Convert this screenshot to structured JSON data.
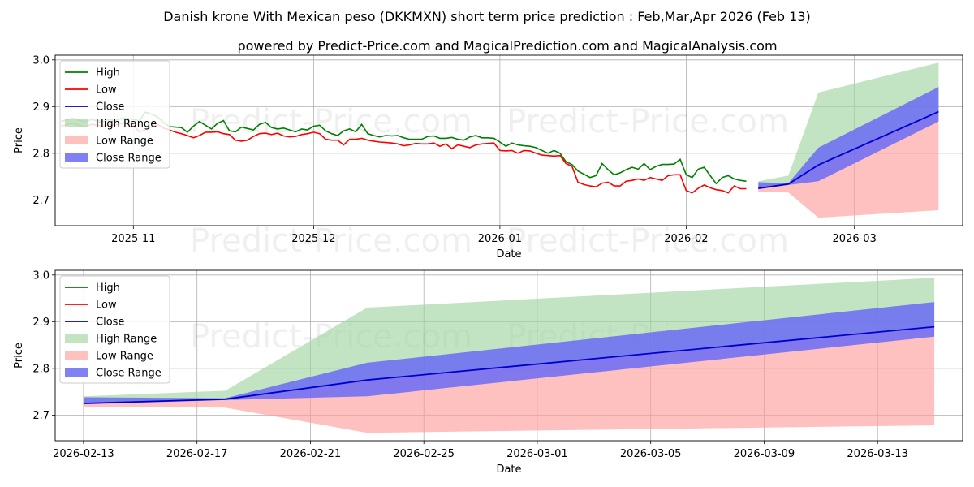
{
  "title": "Danish krone With Mexican peso (DKKMXN) short term price prediction : Feb,Mar,Apr 2026 (Feb 13)",
  "subtitle": "powered by Predict-Price.com and MagicalPrediction.com and MagicalAnalysis.com",
  "watermark": "Predict-Price.com",
  "colors": {
    "high": "#008000",
    "low": "#ff0000",
    "close": "#0000cc",
    "high_range": "#9dd49d",
    "low_range": "#ff9a9a",
    "close_range": "#6b6bf5"
  },
  "chart_data": [
    {
      "id": "top",
      "type": "line",
      "xlabel": "Date",
      "ylabel": "Price",
      "x_range": [
        "2025-10-19",
        "2026-03-19"
      ],
      "ylim": [
        2.645,
        3.01
      ],
      "yticks": [
        "2.7",
        "2.8",
        "2.9",
        "3.0"
      ],
      "ytick_values": [
        2.7,
        2.8,
        2.9,
        3.0
      ],
      "xticks": [
        "2025-11",
        "2025-12",
        "2026-01",
        "2026-02",
        "2026-03"
      ],
      "xtick_dates": [
        "2025-11-01",
        "2025-12-01",
        "2026-01-01",
        "2026-02-01",
        "2026-03-01"
      ],
      "legend": [
        "High",
        "Low",
        "Close",
        "High Range",
        "Low Range",
        "Close Range"
      ],
      "history_start": "2025-10-20",
      "history_high": [
        2.868,
        2.872,
        2.875,
        2.87,
        2.868,
        2.872,
        2.87,
        2.868,
        2.872,
        2.87,
        2.874,
        2.875,
        2.872,
        2.87,
        2.888,
        2.884,
        2.878,
        2.866,
        2.857,
        2.856,
        2.855,
        2.845,
        2.858,
        2.868,
        2.86,
        2.852,
        2.864,
        2.87,
        2.848,
        2.846,
        2.856,
        2.853,
        2.85,
        2.862,
        2.866,
        2.855,
        2.852,
        2.854,
        2.85,
        2.846,
        2.852,
        2.85,
        2.858,
        2.86,
        2.848,
        2.842,
        2.838,
        2.848,
        2.852,
        2.846,
        2.862,
        2.842,
        2.838,
        2.835,
        2.838,
        2.837,
        2.838,
        2.833,
        2.83,
        2.83,
        2.83,
        2.836,
        2.837,
        2.832,
        2.832,
        2.834,
        2.83,
        2.828,
        2.835,
        2.838,
        2.833,
        2.833,
        2.832,
        2.824,
        2.815,
        2.822,
        2.818,
        2.816,
        2.815,
        2.812,
        2.806,
        2.8,
        2.806,
        2.8,
        2.782,
        2.776,
        2.762,
        2.755,
        2.748,
        2.752,
        2.778,
        2.765,
        2.754,
        2.758,
        2.765,
        2.77,
        2.766,
        2.778,
        2.765,
        2.772,
        2.776,
        2.776,
        2.777,
        2.787,
        2.754,
        2.748,
        2.766,
        2.77,
        2.752,
        2.735,
        2.748,
        2.752,
        2.745,
        2.742,
        2.74
      ],
      "history_low": [
        2.858,
        2.862,
        2.864,
        2.86,
        2.856,
        2.862,
        2.86,
        2.858,
        2.862,
        2.86,
        2.864,
        2.865,
        2.86,
        2.846,
        2.85,
        2.856,
        2.862,
        2.854,
        2.85,
        2.845,
        2.842,
        2.838,
        2.833,
        2.838,
        2.845,
        2.845,
        2.846,
        2.842,
        2.84,
        2.828,
        2.826,
        2.828,
        2.836,
        2.842,
        2.843,
        2.84,
        2.843,
        2.837,
        2.835,
        2.836,
        2.84,
        2.842,
        2.845,
        2.842,
        2.83,
        2.828,
        2.828,
        2.818,
        2.83,
        2.83,
        2.832,
        2.828,
        2.826,
        2.824,
        2.823,
        2.822,
        2.82,
        2.816,
        2.818,
        2.821,
        2.82,
        2.82,
        2.822,
        2.815,
        2.82,
        2.81,
        2.818,
        2.815,
        2.812,
        2.818,
        2.82,
        2.821,
        2.822,
        2.806,
        2.805,
        2.806,
        2.8,
        2.806,
        2.805,
        2.8,
        2.796,
        2.795,
        2.794,
        2.795,
        2.778,
        2.772,
        2.738,
        2.733,
        2.73,
        2.728,
        2.736,
        2.738,
        2.73,
        2.73,
        2.74,
        2.742,
        2.745,
        2.742,
        2.748,
        2.745,
        2.742,
        2.752,
        2.754,
        2.754,
        2.72,
        2.715,
        2.725,
        2.732,
        2.726,
        2.722,
        2.72,
        2.715,
        2.73,
        2.724,
        2.724
      ],
      "forecast_dates": [
        "2026-02-13",
        "2026-02-18",
        "2026-02-23",
        "2026-03-15"
      ],
      "forecast_close": [
        2.725,
        2.734,
        2.775,
        2.889
      ],
      "high_range": {
        "upper": [
          2.74,
          2.752,
          2.93,
          2.994
        ],
        "lower": [
          2.725,
          2.734,
          2.775,
          2.889
        ]
      },
      "low_range": {
        "upper": [
          2.725,
          2.734,
          2.775,
          2.889
        ],
        "lower": [
          2.718,
          2.716,
          2.662,
          2.678
        ]
      },
      "close_range": {
        "upper": [
          2.738,
          2.736,
          2.812,
          2.942
        ],
        "lower": [
          2.723,
          2.732,
          2.74,
          2.868
        ]
      }
    },
    {
      "id": "bottom",
      "type": "area",
      "xlabel": "Date",
      "ylabel": "Price",
      "x_range": [
        "2026-02-12",
        "2026-03-16"
      ],
      "ylim": [
        2.645,
        3.01
      ],
      "yticks": [
        "2.7",
        "2.8",
        "2.9",
        "3.0"
      ],
      "ytick_values": [
        2.7,
        2.8,
        2.9,
        3.0
      ],
      "xticks": [
        "2026-02-13",
        "2026-02-17",
        "2026-02-21",
        "2026-02-25",
        "2026-03-01",
        "2026-03-05",
        "2026-03-09",
        "2026-03-13"
      ],
      "xtick_dates": [
        "2026-02-13",
        "2026-02-17",
        "2026-02-21",
        "2026-02-25",
        "2026-03-01",
        "2026-03-05",
        "2026-03-09",
        "2026-03-13"
      ],
      "legend": [
        "High",
        "Low",
        "Close",
        "High Range",
        "Low Range",
        "Close Range"
      ],
      "forecast_dates": [
        "2026-02-13",
        "2026-02-18",
        "2026-02-23",
        "2026-03-15"
      ],
      "forecast_close": [
        2.725,
        2.734,
        2.775,
        2.889
      ],
      "high_range": {
        "upper": [
          2.74,
          2.752,
          2.93,
          2.994
        ],
        "lower": [
          2.725,
          2.734,
          2.775,
          2.889
        ]
      },
      "low_range": {
        "upper": [
          2.725,
          2.734,
          2.775,
          2.889
        ],
        "lower": [
          2.718,
          2.716,
          2.662,
          2.678
        ]
      },
      "close_range": {
        "upper": [
          2.738,
          2.736,
          2.812,
          2.942
        ],
        "lower": [
          2.723,
          2.732,
          2.74,
          2.868
        ]
      }
    }
  ]
}
